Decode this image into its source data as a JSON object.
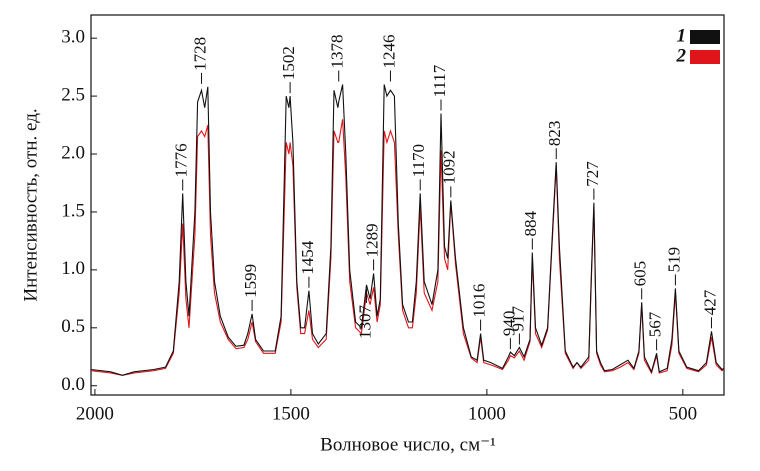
{
  "chart_data": {
    "type": "line",
    "ylabel": "Интенсивность, отн. ед.",
    "xlabel": "Волновое число, см⁻¹",
    "xlim": [
      2010,
      395
    ],
    "ylim": [
      -0.08,
      3.2
    ],
    "xticks": [
      2000,
      1500,
      1000,
      500
    ],
    "yticks": [
      {
        "value": 0,
        "label": "0.0"
      },
      {
        "value": 0.5,
        "label": "0.5"
      },
      {
        "value": 1,
        "label": "1.0"
      },
      {
        "value": 1.5,
        "label": "1.5"
      },
      {
        "value": 2,
        "label": "2.0"
      },
      {
        "value": 2.5,
        "label": "2.5"
      },
      {
        "value": 3,
        "label": "3.0"
      }
    ],
    "grid": false,
    "legend": "top-right",
    "x": [
      2010,
      1960,
      1930,
      1900,
      1850,
      1820,
      1800,
      1785,
      1776,
      1768,
      1760,
      1745,
      1738,
      1728,
      1720,
      1712,
      1705,
      1695,
      1680,
      1660,
      1640,
      1620,
      1610,
      1599,
      1590,
      1570,
      1540,
      1525,
      1512,
      1505,
      1502,
      1495,
      1485,
      1475,
      1465,
      1454,
      1445,
      1430,
      1410,
      1398,
      1390,
      1380,
      1378,
      1368,
      1360,
      1350,
      1335,
      1320,
      1307,
      1298,
      1289,
      1280,
      1272,
      1262,
      1255,
      1246,
      1236,
      1226,
      1215,
      1200,
      1190,
      1180,
      1170,
      1160,
      1140,
      1125,
      1117,
      1108,
      1100,
      1092,
      1080,
      1060,
      1040,
      1025,
      1016,
      1008,
      990,
      960,
      945,
      940,
      930,
      917,
      905,
      890,
      884,
      876,
      860,
      845,
      830,
      823,
      815,
      800,
      780,
      770,
      760,
      740,
      733,
      727,
      720,
      710,
      700,
      680,
      660,
      640,
      625,
      612,
      605,
      598,
      580,
      567,
      560,
      540,
      528,
      519,
      510,
      490,
      460,
      440,
      427,
      415,
      400,
      395
    ],
    "series": [
      {
        "name": "1",
        "color": "#111111",
        "values": [
          0.14,
          0.12,
          0.09,
          0.12,
          0.14,
          0.16,
          0.3,
          0.9,
          1.66,
          0.9,
          0.6,
          1.5,
          2.45,
          2.55,
          2.4,
          2.58,
          1.5,
          0.9,
          0.6,
          0.42,
          0.34,
          0.35,
          0.45,
          0.62,
          0.4,
          0.3,
          0.3,
          0.6,
          2.5,
          2.4,
          2.5,
          2.1,
          0.9,
          0.5,
          0.5,
          0.82,
          0.45,
          0.36,
          0.45,
          1.2,
          2.55,
          2.4,
          2.45,
          2.6,
          2.0,
          1.0,
          0.55,
          0.5,
          0.87,
          0.75,
          0.97,
          0.6,
          0.75,
          2.6,
          2.5,
          2.55,
          2.5,
          1.4,
          0.7,
          0.55,
          0.55,
          0.9,
          1.66,
          0.9,
          0.7,
          1.0,
          2.35,
          1.2,
          1.1,
          1.6,
          1.1,
          0.5,
          0.25,
          0.22,
          0.45,
          0.22,
          0.2,
          0.15,
          0.25,
          0.29,
          0.26,
          0.33,
          0.25,
          0.4,
          1.15,
          0.5,
          0.35,
          0.5,
          1.5,
          1.93,
          1.2,
          0.3,
          0.16,
          0.2,
          0.16,
          0.25,
          1.0,
          1.58,
          0.3,
          0.2,
          0.13,
          0.14,
          0.18,
          0.22,
          0.15,
          0.3,
          0.72,
          0.25,
          0.12,
          0.28,
          0.12,
          0.15,
          0.4,
          0.84,
          0.3,
          0.16,
          0.13,
          0.2,
          0.47,
          0.2,
          0.14,
          0.15
        ]
      },
      {
        "name": "2",
        "color": "#e0151b",
        "values": [
          0.13,
          0.11,
          0.09,
          0.11,
          0.13,
          0.15,
          0.28,
          0.8,
          1.4,
          0.75,
          0.5,
          1.3,
          2.15,
          2.2,
          2.15,
          2.25,
          1.3,
          0.8,
          0.55,
          0.4,
          0.32,
          0.33,
          0.4,
          0.55,
          0.38,
          0.28,
          0.28,
          0.55,
          2.1,
          2.0,
          2.1,
          1.9,
          0.85,
          0.45,
          0.45,
          0.65,
          0.4,
          0.33,
          0.4,
          1.1,
          2.2,
          2.1,
          2.1,
          2.3,
          1.8,
          0.9,
          0.5,
          0.45,
          0.8,
          0.7,
          0.85,
          0.55,
          0.7,
          2.2,
          2.1,
          2.2,
          2.1,
          1.3,
          0.65,
          0.5,
          0.5,
          0.8,
          1.55,
          0.8,
          0.65,
          0.9,
          2.03,
          1.1,
          1.0,
          1.58,
          1.05,
          0.45,
          0.24,
          0.2,
          0.42,
          0.2,
          0.18,
          0.14,
          0.22,
          0.26,
          0.24,
          0.3,
          0.22,
          0.38,
          1.1,
          0.45,
          0.33,
          0.48,
          1.45,
          1.9,
          1.1,
          0.28,
          0.15,
          0.2,
          0.15,
          0.22,
          0.95,
          1.55,
          0.28,
          0.18,
          0.12,
          0.13,
          0.16,
          0.2,
          0.14,
          0.28,
          0.7,
          0.22,
          0.11,
          0.26,
          0.11,
          0.13,
          0.35,
          0.8,
          0.28,
          0.15,
          0.12,
          0.18,
          0.42,
          0.18,
          0.13,
          0.14
        ]
      }
    ],
    "annotations": [
      {
        "label": "1776",
        "x": 1776,
        "y": 1.66
      },
      {
        "label": "1728",
        "x": 1728,
        "y": 2.58
      },
      {
        "label": "1599",
        "x": 1599,
        "y": 0.62
      },
      {
        "label": "1502",
        "x": 1502,
        "y": 2.5
      },
      {
        "label": "1454",
        "x": 1454,
        "y": 0.82
      },
      {
        "label": "1378",
        "x": 1378,
        "y": 2.6
      },
      {
        "label": "1289",
        "x": 1289,
        "y": 0.97
      },
      {
        "label": "1307",
        "x": 1307,
        "y": 0.87,
        "below": true
      },
      {
        "label": "1246",
        "x": 1246,
        "y": 2.6
      },
      {
        "label": "1170",
        "x": 1170,
        "y": 1.66
      },
      {
        "label": "1117",
        "x": 1117,
        "y": 2.35
      },
      {
        "label": "1092",
        "x": 1092,
        "y": 1.6
      },
      {
        "label": "1016",
        "x": 1016,
        "y": 0.45
      },
      {
        "label": "940",
        "x": 940,
        "y": 0.29
      },
      {
        "label": "917",
        "x": 917,
        "y": 0.33
      },
      {
        "label": "884",
        "x": 884,
        "y": 1.15
      },
      {
        "label": "823",
        "x": 823,
        "y": 1.93
      },
      {
        "label": "727",
        "x": 727,
        "y": 1.58
      },
      {
        "label": "605",
        "x": 605,
        "y": 0.72
      },
      {
        "label": "567",
        "x": 567,
        "y": 0.28
      },
      {
        "label": "519",
        "x": 519,
        "y": 0.84
      },
      {
        "label": "427",
        "x": 427,
        "y": 0.47
      }
    ]
  }
}
